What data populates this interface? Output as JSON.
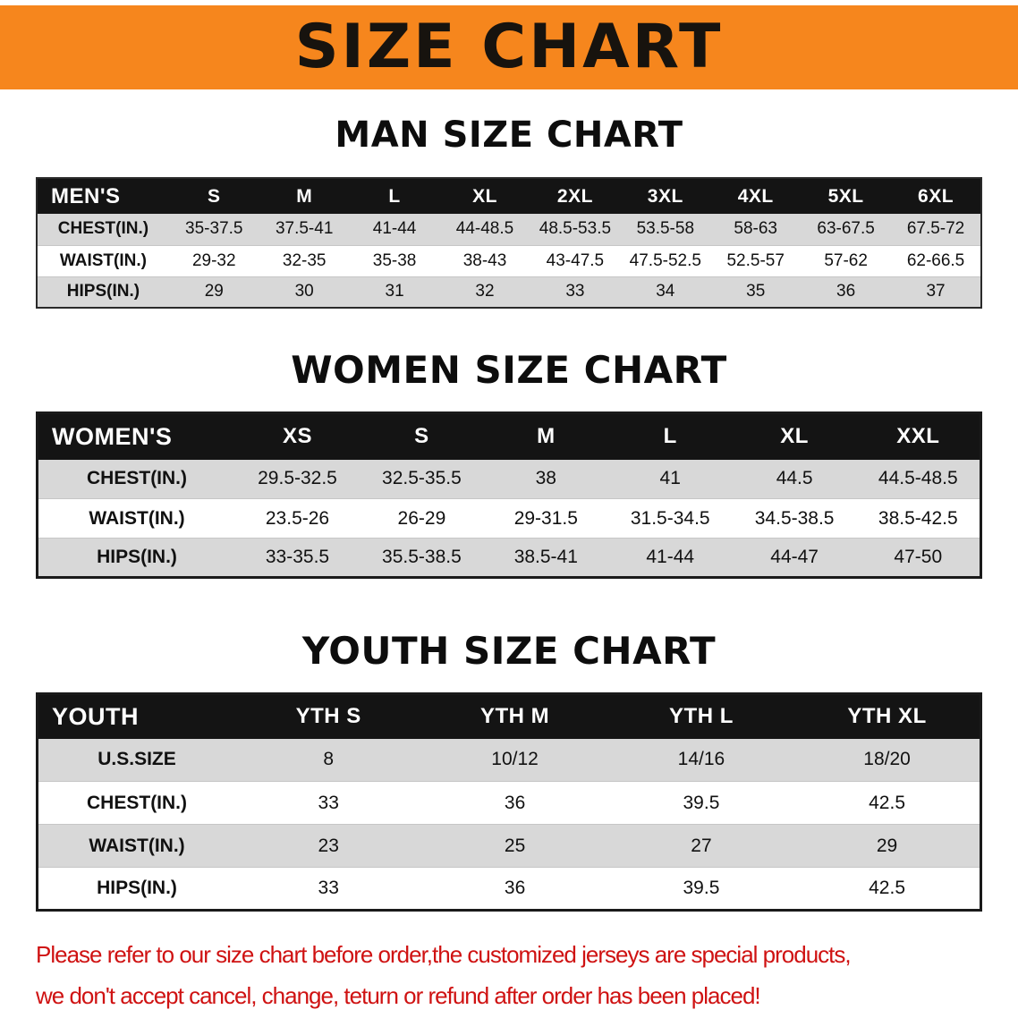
{
  "banner": {
    "title": "SIZE CHART"
  },
  "men": {
    "heading": "MAN SIZE CHART",
    "table": {
      "header": [
        "MEN'S",
        "S",
        "M",
        "L",
        "XL",
        "2XL",
        "3XL",
        "4XL",
        "5XL",
        "6XL"
      ],
      "rows": [
        [
          "CHEST(IN.)",
          "35-37.5",
          "37.5-41",
          "41-44",
          "44-48.5",
          "48.5-53.5",
          "53.5-58",
          "58-63",
          "63-67.5",
          "67.5-72"
        ],
        [
          "WAIST(IN.)",
          "29-32",
          "32-35",
          "35-38",
          "38-43",
          "43-47.5",
          "47.5-52.5",
          "52.5-57",
          "57-62",
          "62-66.5"
        ],
        [
          "HIPS(IN.)",
          "29",
          "30",
          "31",
          "32",
          "33",
          "34",
          "35",
          "36",
          "37"
        ]
      ]
    }
  },
  "women": {
    "heading": "WOMEN SIZE CHART",
    "table": {
      "header": [
        "WOMEN'S",
        "XS",
        "S",
        "M",
        "L",
        "XL",
        "XXL"
      ],
      "rows": [
        [
          "CHEST(IN.)",
          "29.5-32.5",
          "32.5-35.5",
          "38",
          "41",
          "44.5",
          "44.5-48.5"
        ],
        [
          "WAIST(IN.)",
          "23.5-26",
          "26-29",
          "29-31.5",
          "31.5-34.5",
          "34.5-38.5",
          "38.5-42.5"
        ],
        [
          "HIPS(IN.)",
          "33-35.5",
          "35.5-38.5",
          "38.5-41",
          "41-44",
          "44-47",
          "47-50"
        ]
      ]
    }
  },
  "youth": {
    "heading": "YOUTH SIZE CHART",
    "table": {
      "header": [
        "YOUTH",
        "YTH S",
        "YTH M",
        "YTH L",
        "YTH XL"
      ],
      "rows": [
        [
          "U.S.SIZE",
          "8",
          "10/12",
          "14/16",
          "18/20"
        ],
        [
          "CHEST(IN.)",
          "33",
          "36",
          "39.5",
          "42.5"
        ],
        [
          "WAIST(IN.)",
          "23",
          "25",
          "27",
          "29"
        ],
        [
          "HIPS(IN.)",
          "33",
          "36",
          "39.5",
          "42.5"
        ]
      ]
    }
  },
  "disclaimer": {
    "line1": "Please refer to our size chart before order,the customized jerseys are special products,",
    "line2": "we don't accept cancel, change, teturn or refund after order has been placed!"
  },
  "colors": {
    "banner_bg": "#f6861d",
    "row_alt": "#d8d8d8",
    "disclaimer_red": "#cf1212"
  }
}
